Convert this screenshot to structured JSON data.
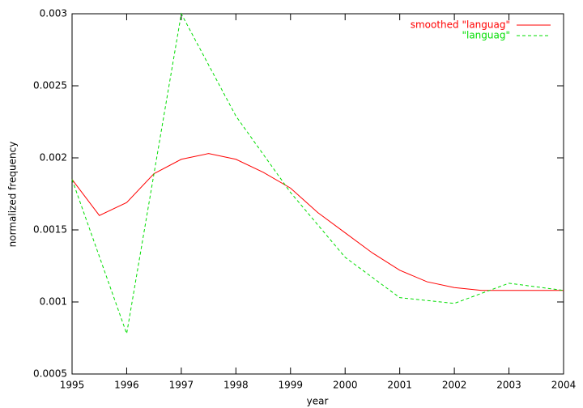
{
  "chart_data": {
    "type": "line",
    "xlabel": "year",
    "ylabel": "normalized frequency",
    "xlim": [
      1995,
      2004
    ],
    "xticks": [
      1995,
      1996,
      1997,
      1998,
      1999,
      2000,
      2001,
      2002,
      2003,
      2004
    ],
    "ylim": [
      0.0005,
      0.003
    ],
    "yticks": [
      0.0005,
      0.001,
      0.0015,
      0.002,
      0.0025,
      0.003
    ],
    "grid": false,
    "legend": "top-right",
    "series": [
      {
        "name": "smoothed \"languag\"",
        "color": "#ff0000",
        "dash": false,
        "x": [
          1995,
          1995.5,
          1996,
          1996.5,
          1997,
          1997.5,
          1998,
          1998.5,
          1999,
          1999.5,
          2000,
          2000.5,
          2001,
          2001.5,
          2002,
          2002.5,
          2003,
          2003.5,
          2004
        ],
        "values": [
          0.00185,
          0.0016,
          0.00169,
          0.00189,
          0.00199,
          0.00203,
          0.00199,
          0.0019,
          0.00179,
          0.00162,
          0.00148,
          0.00134,
          0.00122,
          0.00114,
          0.0011,
          0.00108,
          0.00108,
          0.00108,
          0.00108
        ]
      },
      {
        "name": "\"languag\"",
        "color": "#00dd00",
        "dash": true,
        "x": [
          1995,
          1996,
          1997,
          1998,
          1999,
          2000,
          2001,
          2002,
          2003,
          2004
        ],
        "values": [
          0.00185,
          0.00078,
          0.003,
          0.00229,
          0.00176,
          0.00131,
          0.00103,
          0.00099,
          0.00113,
          0.00108
        ]
      }
    ]
  }
}
